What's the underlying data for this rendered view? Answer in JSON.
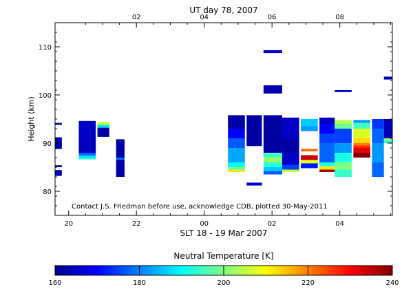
{
  "colors": {
    "background": "#ffffff",
    "axis": "#000000",
    "colormap": [
      "#00008f",
      "#0000ff",
      "#0080ff",
      "#00ffff",
      "#80ff80",
      "#ffff00",
      "#ff8000",
      "#ff0000",
      "#800000"
    ]
  },
  "chart_data": {
    "type": "heatmap",
    "top_title": "UT day 78, 2007",
    "bottom_title": "SLT 18 - 19 Mar 2007",
    "ylabel": "Height (km)",
    "credit": "Contact J.S. Friedman before use, acknowledge CDB, plotted 30-May-2011",
    "colorbar_title": "Neutral Temperature [K]",
    "x_slt_range": [
      19.6,
      29.55
    ],
    "ylim": [
      75,
      115
    ],
    "bottom_ticks": [
      {
        "value": 20,
        "label": "20"
      },
      {
        "value": 22,
        "label": "22"
      },
      {
        "value": 24,
        "label": "00"
      },
      {
        "value": 26,
        "label": "02"
      },
      {
        "value": 28,
        "label": "04"
      }
    ],
    "top_ticks": [
      {
        "value": 22,
        "label": "02"
      },
      {
        "value": 24,
        "label": "04"
      },
      {
        "value": 26,
        "label": "06"
      },
      {
        "value": 28,
        "label": "08"
      }
    ],
    "y_ticks": [
      80,
      90,
      100,
      110
    ],
    "colorbar": {
      "min": 160,
      "max": 240,
      "ticks": [
        160,
        180,
        200,
        220,
        240
      ]
    },
    "columns": [
      {
        "x0": 19.6,
        "x1": 19.8,
        "cells": [
          [
            93.8,
            94.2,
            162
          ],
          [
            88.8,
            91.2,
            163
          ],
          [
            85.0,
            85.4,
            162
          ],
          [
            83.2,
            84.4,
            163
          ]
        ]
      },
      {
        "x0": 20.3,
        "x1": 20.8,
        "cells": [
          [
            91.5,
            94.6,
            165
          ],
          [
            88.0,
            91.5,
            164
          ],
          [
            87.4,
            88.0,
            178
          ],
          [
            86.8,
            87.4,
            188
          ],
          [
            86.6,
            86.8,
            195
          ]
        ]
      },
      {
        "x0": 20.85,
        "x1": 21.2,
        "cells": [
          [
            93.8,
            94.4,
            206
          ],
          [
            93.2,
            93.8,
            188
          ],
          [
            91.3,
            93.2,
            162
          ]
        ]
      },
      {
        "x0": 21.4,
        "x1": 21.65,
        "cells": [
          [
            87.0,
            90.8,
            162
          ],
          [
            86.5,
            87.0,
            178
          ],
          [
            83.0,
            86.5,
            162
          ]
        ]
      },
      {
        "x0": 24.7,
        "x1": 25.2,
        "cells": [
          [
            93.0,
            95.8,
            162
          ],
          [
            91.0,
            93.0,
            170
          ],
          [
            89.0,
            91.0,
            177
          ],
          [
            86.0,
            89.0,
            183
          ],
          [
            85.0,
            86.0,
            190
          ],
          [
            84.4,
            85.0,
            200
          ],
          [
            84.0,
            84.4,
            212
          ]
        ]
      },
      {
        "x0": 25.25,
        "x1": 25.7,
        "cells": [
          [
            89.4,
            95.8,
            162
          ],
          [
            81.2,
            81.8,
            165
          ]
        ]
      },
      {
        "x0": 25.75,
        "x1": 26.3,
        "cells": [
          [
            108.7,
            109.3,
            165
          ],
          [
            100.3,
            102.0,
            163
          ],
          [
            88.0,
            95.8,
            162
          ],
          [
            87.0,
            88.0,
            195
          ],
          [
            86.0,
            87.0,
            202
          ],
          [
            85.0,
            86.0,
            193
          ],
          [
            84.2,
            85.0,
            186
          ],
          [
            83.5,
            84.2,
            177
          ]
        ]
      },
      {
        "x0": 26.3,
        "x1": 26.8,
        "cells": [
          [
            91.0,
            95.3,
            165
          ],
          [
            88.0,
            91.0,
            162
          ],
          [
            85.5,
            88.0,
            165
          ],
          [
            84.5,
            85.5,
            175
          ],
          [
            84.0,
            84.5,
            205
          ]
        ]
      },
      {
        "x0": 26.85,
        "x1": 27.35,
        "cells": [
          [
            93.5,
            95.0,
            186
          ],
          [
            92.5,
            93.5,
            182
          ],
          [
            88.3,
            88.8,
            222
          ],
          [
            86.5,
            87.5,
            234
          ],
          [
            85.8,
            86.5,
            208
          ],
          [
            84.8,
            85.8,
            172
          ]
        ]
      },
      {
        "x0": 27.4,
        "x1": 27.85,
        "cells": [
          [
            94.0,
            95.3,
            165
          ],
          [
            92.0,
            94.0,
            170
          ],
          [
            90.0,
            92.0,
            175
          ],
          [
            86.0,
            90.0,
            178
          ],
          [
            85.2,
            86.0,
            192
          ],
          [
            84.5,
            85.2,
            212
          ],
          [
            84.0,
            84.5,
            237
          ]
        ]
      },
      {
        "x0": 27.85,
        "x1": 28.35,
        "cells": [
          [
            100.6,
            101.0,
            165
          ],
          [
            94.0,
            94.8,
            204
          ],
          [
            93.0,
            94.0,
            198
          ],
          [
            90.0,
            93.0,
            175
          ],
          [
            88.0,
            90.0,
            182
          ],
          [
            86.0,
            88.0,
            192
          ],
          [
            84.5,
            86.0,
            200
          ],
          [
            83.0,
            84.5,
            194
          ]
        ]
      },
      {
        "x0": 28.4,
        "x1": 28.9,
        "cells": [
          [
            94.2,
            94.8,
            182
          ],
          [
            93.0,
            94.2,
            195
          ],
          [
            91.0,
            93.0,
            207
          ],
          [
            90.0,
            91.0,
            213
          ],
          [
            89.5,
            90.0,
            220
          ],
          [
            89.0,
            89.5,
            227
          ],
          [
            88.0,
            89.0,
            232
          ],
          [
            87.0,
            88.0,
            240
          ]
        ]
      },
      {
        "x0": 28.95,
        "x1": 29.3,
        "cells": [
          [
            93.0,
            95.0,
            174
          ],
          [
            90.0,
            93.0,
            178
          ],
          [
            86.0,
            90.0,
            182
          ],
          [
            83.0,
            86.0,
            178
          ]
        ]
      },
      {
        "x0": 29.3,
        "x1": 29.55,
        "cells": [
          [
            103.2,
            103.8,
            163
          ],
          [
            91.0,
            95.0,
            164
          ],
          [
            90.5,
            91.0,
            202
          ],
          [
            90.0,
            90.5,
            192
          ]
        ]
      }
    ]
  }
}
